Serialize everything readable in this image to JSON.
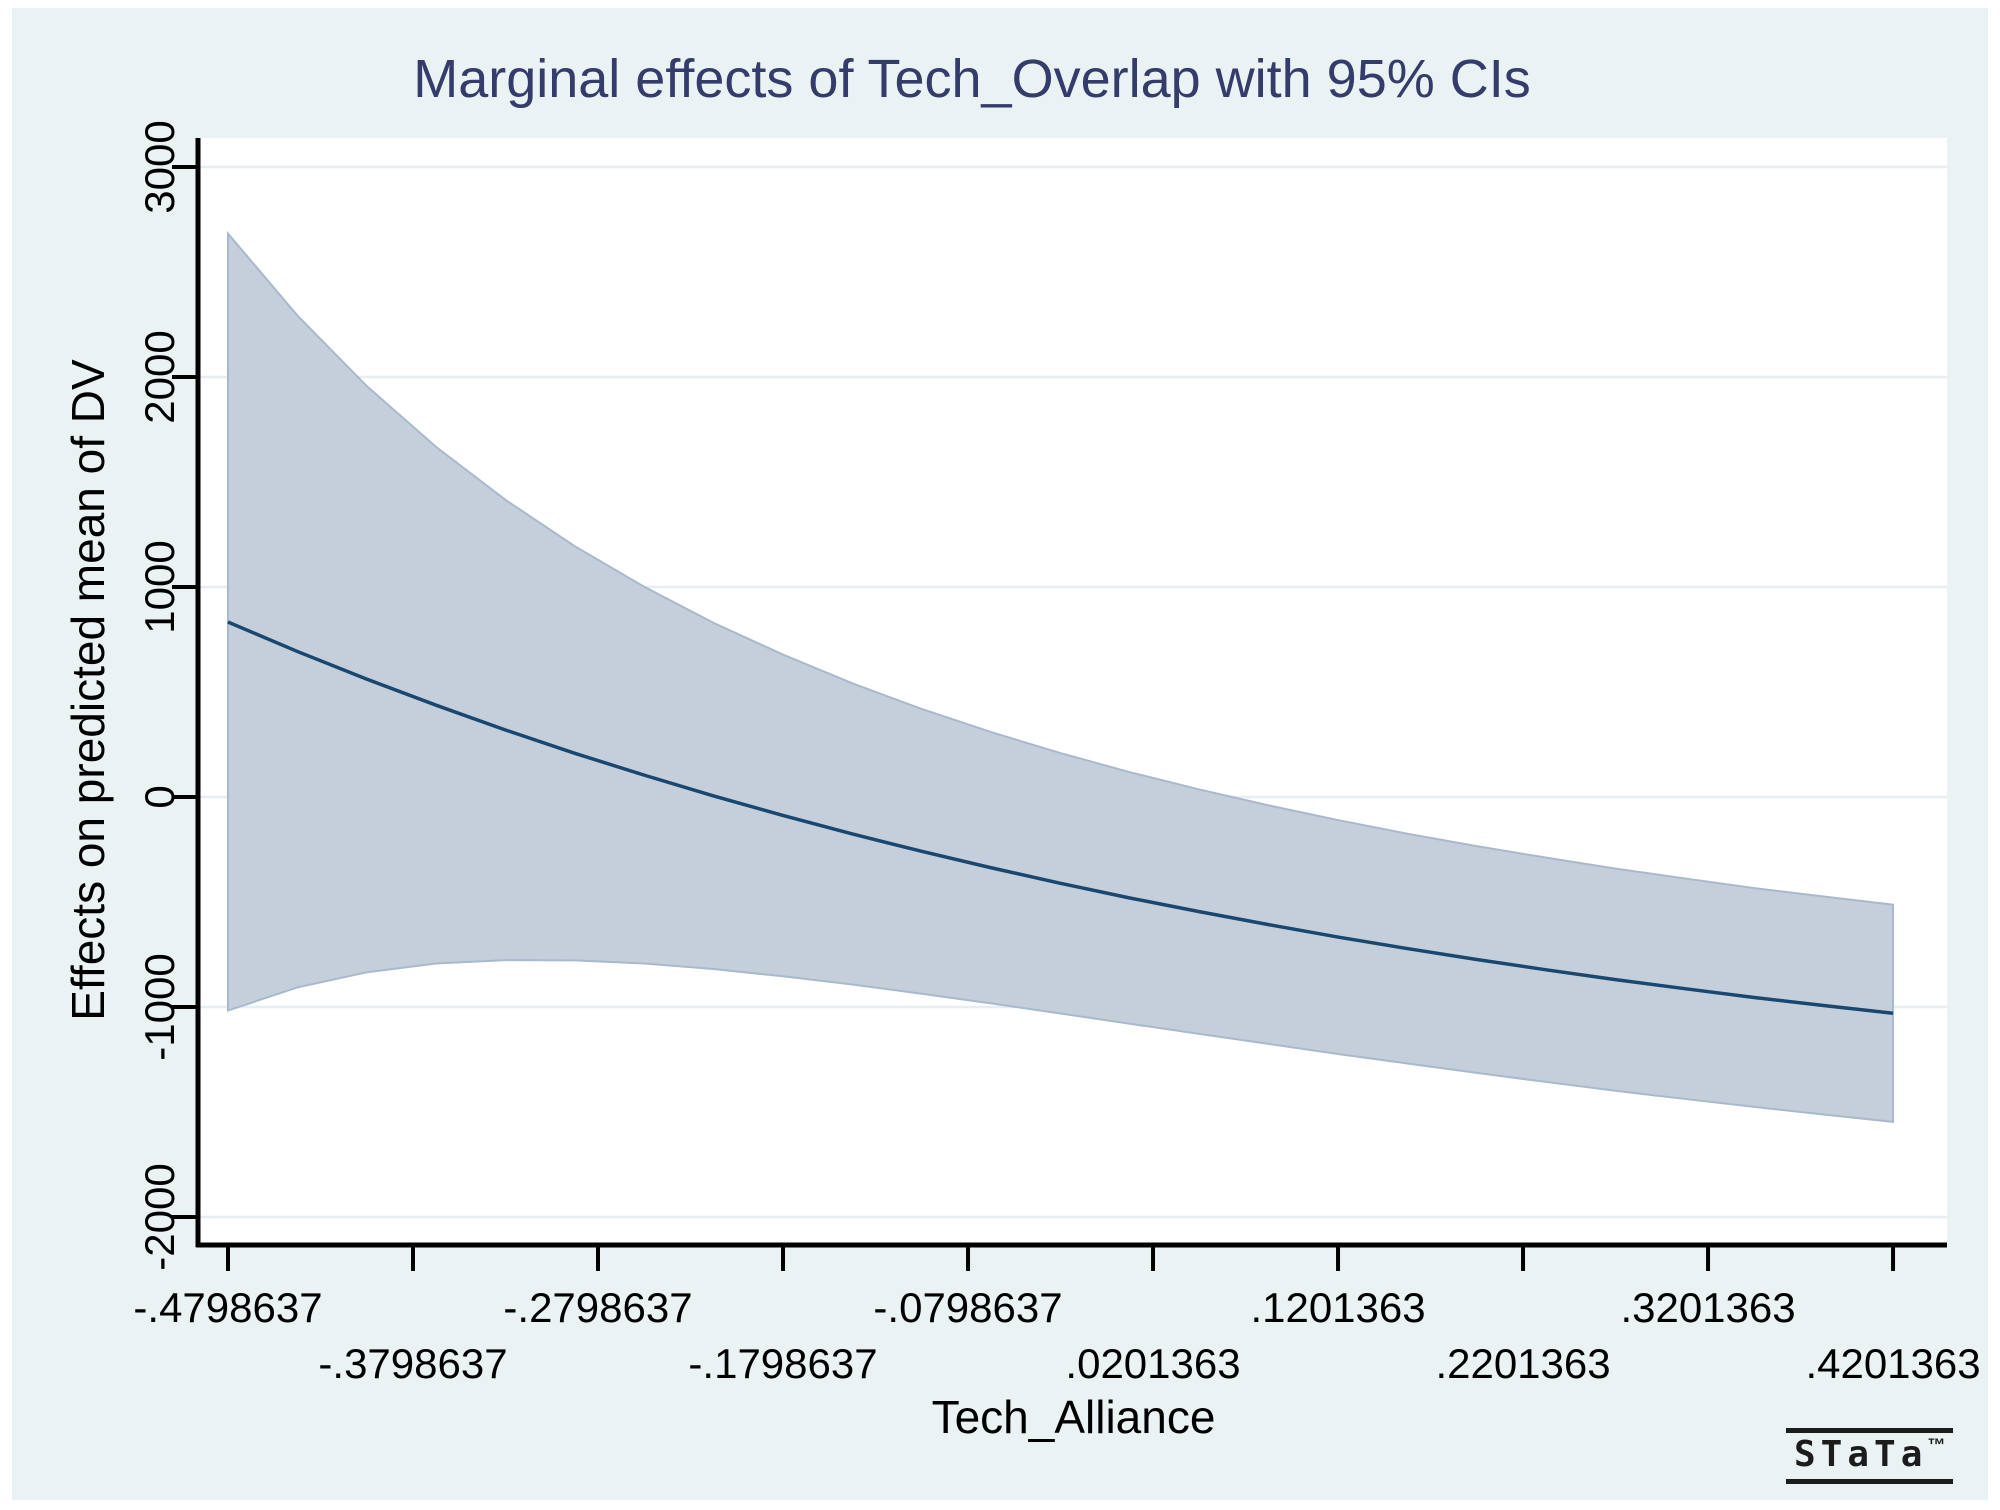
{
  "title": "Marginal effects of Tech_Overlap with 95% CIs",
  "x_axis": {
    "label": "Tech_Alliance"
  },
  "y_axis": {
    "label": "Effects on predicted mean of DV"
  },
  "branding": {
    "logo_text": "STaTa",
    "trademark": "™"
  },
  "colors": {
    "background": "#eaf2f3",
    "plot_bg": "#ffffff",
    "band_fill": "#c5cfdc",
    "band_edge": "#a9b9cc",
    "line": "#1a476f",
    "grid": "#e6eef3",
    "title": "#333c6b",
    "axis": "#000000",
    "logo": "#1c1c1c"
  },
  "chart_data": {
    "type": "line",
    "title": "Marginal effects of Tech_Overlap with 95% CIs",
    "xlabel": "Tech_Alliance",
    "ylabel": "Effects on predicted mean of DV",
    "xlim": [
      -0.495,
      0.4493
    ],
    "ylim": [
      -2124,
      3138
    ],
    "grid": "horizontal",
    "legend": "none",
    "y_ticks": [
      {
        "label": "3000",
        "value": 3000
      },
      {
        "label": "2000",
        "value": 2000
      },
      {
        "label": "1000",
        "value": 1000
      },
      {
        "label": "0",
        "value": 0
      },
      {
        "label": "-1000",
        "value": -1000
      },
      {
        "label": "-2000",
        "value": -2000
      }
    ],
    "x_ticks": [
      {
        "label": "-.4798637",
        "value": -0.4798637
      },
      {
        "label": "-.3798637",
        "value": -0.3798637
      },
      {
        "label": "-.2798637",
        "value": -0.2798637
      },
      {
        "label": "-.1798637",
        "value": -0.1798637
      },
      {
        "label": "-.0798637",
        "value": -0.0798637
      },
      {
        "label": ".0201363",
        "value": 0.0201363
      },
      {
        "label": ".1201363",
        "value": 0.1201363
      },
      {
        "label": ".2201363",
        "value": 0.2201363
      },
      {
        "label": ".3201363",
        "value": 0.3201363
      },
      {
        "label": ".4201363",
        "value": 0.4201363
      }
    ],
    "x": [
      -0.4799,
      -0.4424,
      -0.4049,
      -0.3674,
      -0.3299,
      -0.2924,
      -0.2549,
      -0.2174,
      -0.1799,
      -0.1424,
      -0.1049,
      -0.0674,
      -0.0299,
      0.0076,
      0.0451,
      0.0826,
      0.1201,
      0.1576,
      0.1951,
      0.2326,
      0.2701,
      0.3076,
      0.3451,
      0.3826,
      0.4201
    ],
    "series": [
      {
        "name": "Marginal effect of Tech_Overlap",
        "values": [
          833,
          693,
          561,
          437,
          319,
          208,
          104,
          5,
          -88,
          -176,
          -259,
          -337,
          -411,
          -481,
          -546,
          -608,
          -667,
          -722,
          -774,
          -823,
          -870,
          -913,
          -955,
          -993,
          -1030
        ]
      },
      {
        "name": "95% CI upper bound",
        "values": [
          2683,
          2293,
          1957,
          1667,
          1415,
          1194,
          1001,
          829,
          678,
          541,
          419,
          309,
          209,
          118,
          36,
          -40,
          -110,
          -175,
          -234,
          -289,
          -341,
          -388,
          -434,
          -474,
          -513
        ]
      },
      {
        "name": "95% CI lower bound",
        "values": [
          -1017,
          -907,
          -835,
          -793,
          -777,
          -778,
          -793,
          -819,
          -854,
          -893,
          -937,
          -983,
          -1031,
          -1080,
          -1128,
          -1176,
          -1224,
          -1269,
          -1314,
          -1357,
          -1399,
          -1438,
          -1476,
          -1512,
          -1547
        ]
      }
    ]
  }
}
